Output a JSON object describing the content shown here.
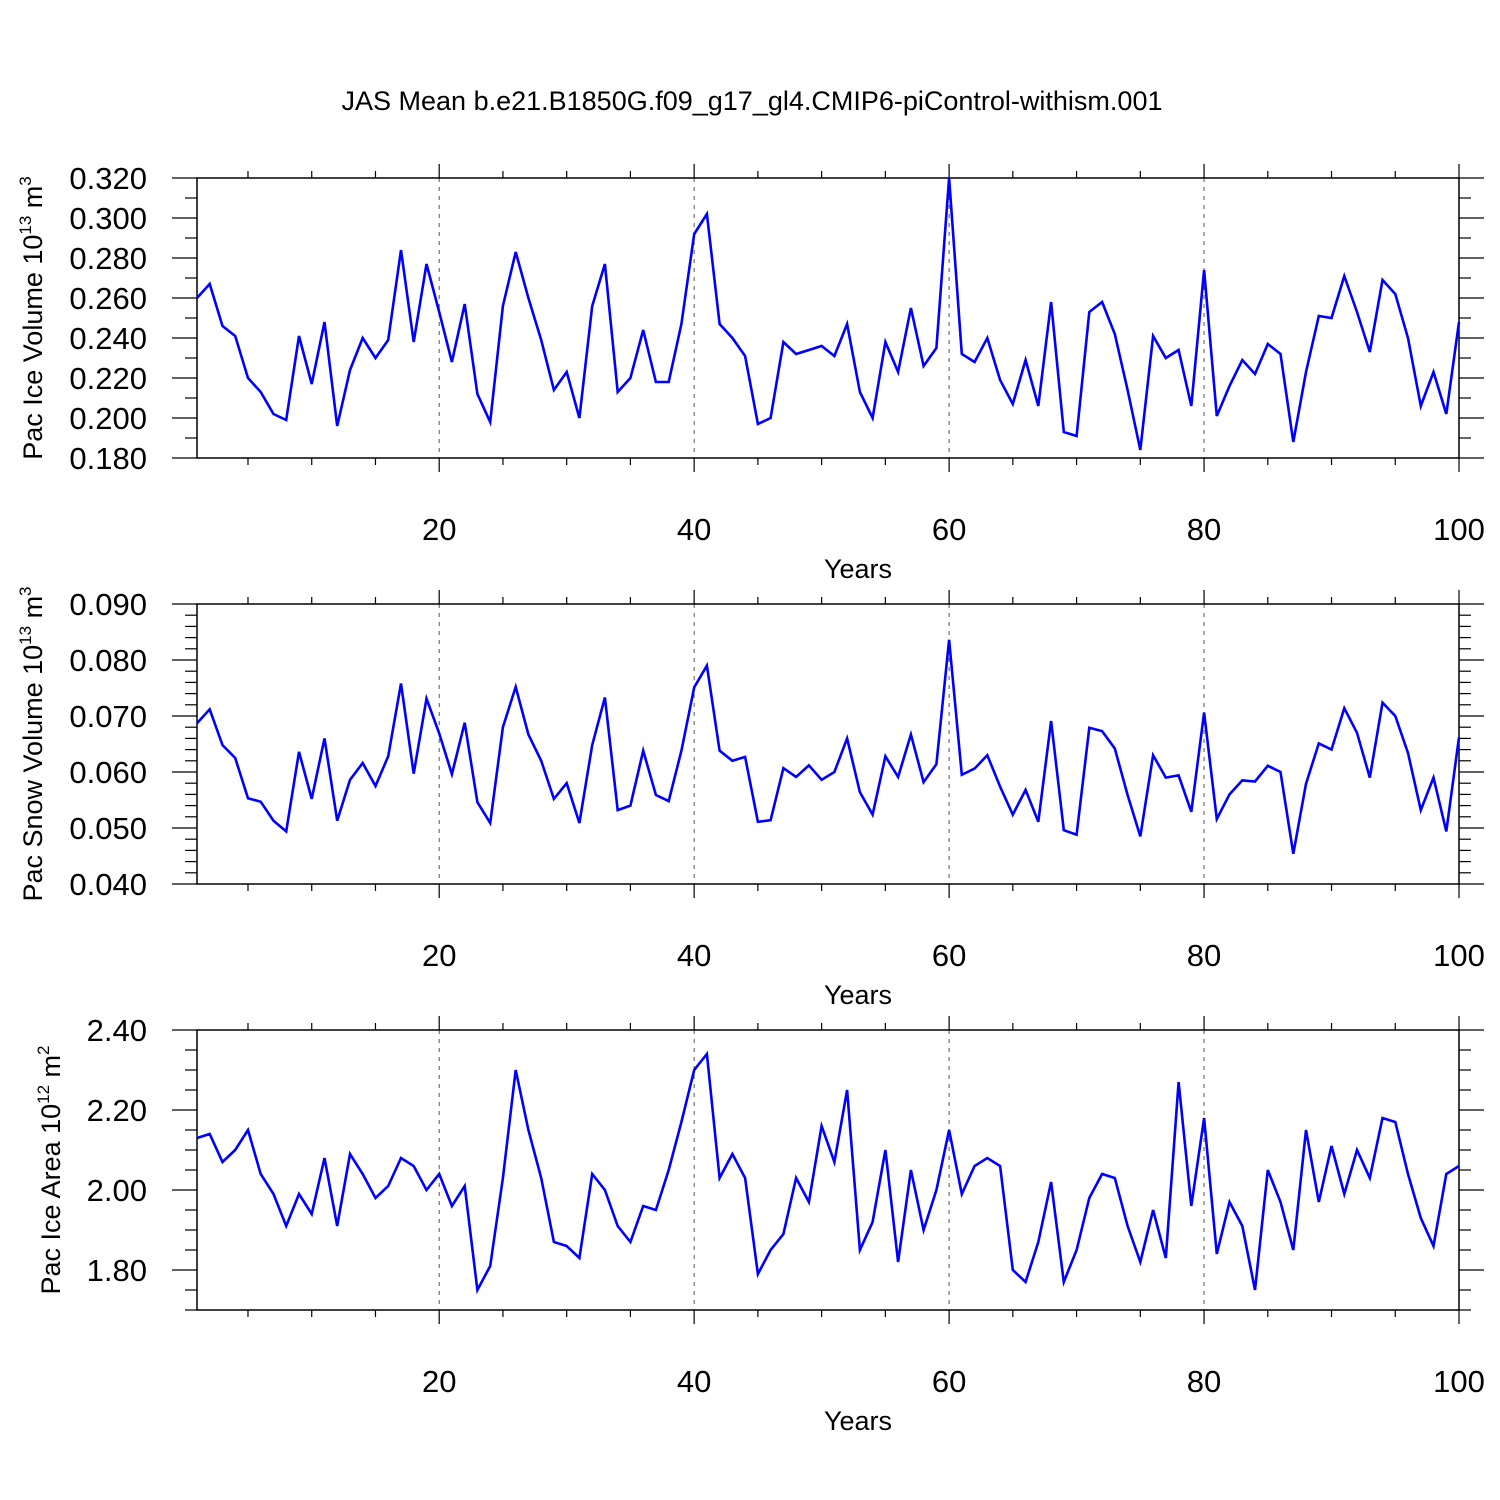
{
  "title": "JAS Mean b.e21.B1850G.f09_g17_gl4.CMIP6-piControl-withism.001",
  "colors": {
    "line": "#0000ff",
    "axis": "#000000",
    "grid": "#555555"
  },
  "chart_data": [
    {
      "type": "line",
      "ylabel": {
        "text": "Pac Ice Volume 10",
        "exp": "13",
        "unit": "m",
        "unit_exp": "3"
      },
      "xlabel": "Years",
      "xlim": [
        1,
        100
      ],
      "ylim": [
        0.18,
        0.32
      ],
      "yticks": [
        "0.180",
        "0.200",
        "0.220",
        "0.240",
        "0.260",
        "0.280",
        "0.300",
        "0.320"
      ],
      "xticks": [
        "20",
        "40",
        "60",
        "80",
        "100"
      ],
      "grid": "dashed vertical at x major ticks",
      "series": [
        {
          "x": [
            1,
            2,
            3,
            4,
            5,
            6,
            7,
            8,
            9,
            10,
            11,
            12,
            13,
            14,
            15,
            16,
            17,
            18,
            19,
            20,
            21,
            22,
            23,
            24,
            25,
            26,
            27,
            28,
            29,
            30,
            31,
            32,
            33,
            34,
            35,
            36,
            37,
            38,
            39,
            40,
            41,
            42,
            43,
            44,
            45,
            46,
            47,
            48,
            49,
            50,
            51,
            52,
            53,
            54,
            55,
            56,
            57,
            58,
            59,
            60,
            61,
            62,
            63,
            64,
            65,
            66,
            67,
            68,
            69,
            70,
            71,
            72,
            73,
            74,
            75,
            76,
            77,
            78,
            79,
            80,
            81,
            82,
            83,
            84,
            85,
            86,
            87,
            88,
            89,
            90,
            91,
            92,
            93,
            94,
            95,
            96,
            97,
            98,
            99,
            100
          ],
          "values": [
            0.26,
            0.267,
            0.246,
            0.241,
            0.22,
            0.213,
            0.202,
            0.199,
            0.241,
            0.217,
            0.248,
            0.196,
            0.224,
            0.24,
            0.23,
            0.239,
            0.284,
            0.238,
            0.277,
            0.253,
            0.228,
            0.257,
            0.212,
            0.198,
            0.256,
            0.283,
            0.26,
            0.239,
            0.214,
            0.223,
            0.2,
            0.256,
            0.277,
            0.213,
            0.22,
            0.244,
            0.218,
            0.218,
            0.247,
            0.292,
            0.302,
            0.247,
            0.24,
            0.231,
            0.197,
            0.2,
            0.238,
            0.232,
            0.234,
            0.236,
            0.231,
            0.247,
            0.213,
            0.2,
            0.238,
            0.223,
            0.255,
            0.226,
            0.235,
            0.32,
            0.232,
            0.228,
            0.24,
            0.219,
            0.207,
            0.229,
            0.206,
            0.258,
            0.193,
            0.191,
            0.253,
            0.258,
            0.242,
            0.214,
            0.184,
            0.241,
            0.23,
            0.234,
            0.206,
            0.274,
            0.201,
            0.216,
            0.229,
            0.222,
            0.237,
            0.232,
            0.188,
            0.223,
            0.251,
            0.25,
            0.271,
            0.253,
            0.233,
            0.269,
            0.262,
            0.24,
            0.206,
            0.223,
            0.202,
            0.248
          ]
        }
      ]
    },
    {
      "type": "line",
      "ylabel": {
        "text": "Pac Snow Volume 10",
        "exp": "13",
        "unit": "m",
        "unit_exp": "3"
      },
      "xlabel": "Years",
      "xlim": [
        1,
        100
      ],
      "ylim": [
        0.04,
        0.09
      ],
      "yticks": [
        "0.040",
        "0.050",
        "0.060",
        "0.070",
        "0.080",
        "0.090"
      ],
      "xticks": [
        "20",
        "40",
        "60",
        "80",
        "100"
      ],
      "grid": "dashed vertical at x major ticks",
      "series": [
        {
          "x": [
            1,
            2,
            3,
            4,
            5,
            6,
            7,
            8,
            9,
            10,
            11,
            12,
            13,
            14,
            15,
            16,
            17,
            18,
            19,
            20,
            21,
            22,
            23,
            24,
            25,
            26,
            27,
            28,
            29,
            30,
            31,
            32,
            33,
            34,
            35,
            36,
            37,
            38,
            39,
            40,
            41,
            42,
            43,
            44,
            45,
            46,
            47,
            48,
            49,
            50,
            51,
            52,
            53,
            54,
            55,
            56,
            57,
            58,
            59,
            60,
            61,
            62,
            63,
            64,
            65,
            66,
            67,
            68,
            69,
            70,
            71,
            72,
            73,
            74,
            75,
            76,
            77,
            78,
            79,
            80,
            81,
            82,
            83,
            84,
            85,
            86,
            87,
            88,
            89,
            90,
            91,
            92,
            93,
            94,
            95,
            96,
            97,
            98,
            99,
            100
          ],
          "values": [
            0.0687,
            0.0712,
            0.0648,
            0.0625,
            0.0553,
            0.0547,
            0.0513,
            0.0494,
            0.0636,
            0.0552,
            0.066,
            0.0513,
            0.0586,
            0.0616,
            0.0575,
            0.0628,
            0.0758,
            0.0597,
            0.0731,
            0.0669,
            0.0596,
            0.0688,
            0.0546,
            0.0509,
            0.068,
            0.0752,
            0.0667,
            0.062,
            0.0552,
            0.058,
            0.0509,
            0.0648,
            0.0733,
            0.0532,
            0.054,
            0.0638,
            0.0559,
            0.0548,
            0.0638,
            0.0751,
            0.079,
            0.0638,
            0.062,
            0.0627,
            0.0511,
            0.0514,
            0.0607,
            0.0591,
            0.0612,
            0.0586,
            0.06,
            0.066,
            0.0564,
            0.0524,
            0.0628,
            0.0591,
            0.0667,
            0.0582,
            0.0614,
            0.0836,
            0.0595,
            0.0606,
            0.063,
            0.0574,
            0.0524,
            0.0568,
            0.0511,
            0.0691,
            0.0496,
            0.0488,
            0.0679,
            0.0673,
            0.0642,
            0.0559,
            0.0485,
            0.063,
            0.059,
            0.0594,
            0.0529,
            0.0706,
            0.0516,
            0.056,
            0.0585,
            0.0583,
            0.0611,
            0.06,
            0.0454,
            0.0579,
            0.0651,
            0.064,
            0.0714,
            0.067,
            0.059,
            0.0724,
            0.07,
            0.0634,
            0.0532,
            0.059,
            0.0494,
            0.0662
          ]
        }
      ]
    },
    {
      "type": "line",
      "ylabel": {
        "text": "Pac Ice Area 10",
        "exp": "12",
        "unit": "m",
        "unit_exp": "2"
      },
      "xlabel": "Years",
      "xlim": [
        1,
        100
      ],
      "ylim": [
        1.7,
        2.4
      ],
      "yticks": [
        "1.80",
        "2.00",
        "2.20",
        "2.40"
      ],
      "xticks": [
        "20",
        "40",
        "60",
        "80",
        "100"
      ],
      "grid": "dashed vertical at x major ticks",
      "series": [
        {
          "x": [
            1,
            2,
            3,
            4,
            5,
            6,
            7,
            8,
            9,
            10,
            11,
            12,
            13,
            14,
            15,
            16,
            17,
            18,
            19,
            20,
            21,
            22,
            23,
            24,
            25,
            26,
            27,
            28,
            29,
            30,
            31,
            32,
            33,
            34,
            35,
            36,
            37,
            38,
            39,
            40,
            41,
            42,
            43,
            44,
            45,
            46,
            47,
            48,
            49,
            50,
            51,
            52,
            53,
            54,
            55,
            56,
            57,
            58,
            59,
            60,
            61,
            62,
            63,
            64,
            65,
            66,
            67,
            68,
            69,
            70,
            71,
            72,
            73,
            74,
            75,
            76,
            77,
            78,
            79,
            80,
            81,
            82,
            83,
            84,
            85,
            86,
            87,
            88,
            89,
            90,
            91,
            92,
            93,
            94,
            95,
            96,
            97,
            98,
            99,
            100
          ],
          "values": [
            2.13,
            2.14,
            2.07,
            2.1,
            2.15,
            2.04,
            1.99,
            1.91,
            1.99,
            1.94,
            2.08,
            1.91,
            2.09,
            2.04,
            1.98,
            2.01,
            2.08,
            2.06,
            2.0,
            2.04,
            1.96,
            2.01,
            1.75,
            1.81,
            2.03,
            2.3,
            2.15,
            2.03,
            1.87,
            1.86,
            1.83,
            2.04,
            2.0,
            1.91,
            1.87,
            1.96,
            1.95,
            2.05,
            2.17,
            2.3,
            2.34,
            2.03,
            2.09,
            2.03,
            1.79,
            1.85,
            1.89,
            2.03,
            1.97,
            2.16,
            2.07,
            2.25,
            1.85,
            1.92,
            2.1,
            1.82,
            2.05,
            1.9,
            2.0,
            2.15,
            1.99,
            2.06,
            2.08,
            2.06,
            1.8,
            1.77,
            1.87,
            2.02,
            1.77,
            1.85,
            1.98,
            2.04,
            2.03,
            1.91,
            1.82,
            1.95,
            1.83,
            2.27,
            1.96,
            2.18,
            1.84,
            1.97,
            1.91,
            1.75,
            2.05,
            1.97,
            1.85,
            2.15,
            1.97,
            2.11,
            1.99,
            2.1,
            2.03,
            2.18,
            2.17,
            2.04,
            1.93,
            1.86,
            2.04,
            2.06
          ]
        }
      ]
    }
  ]
}
